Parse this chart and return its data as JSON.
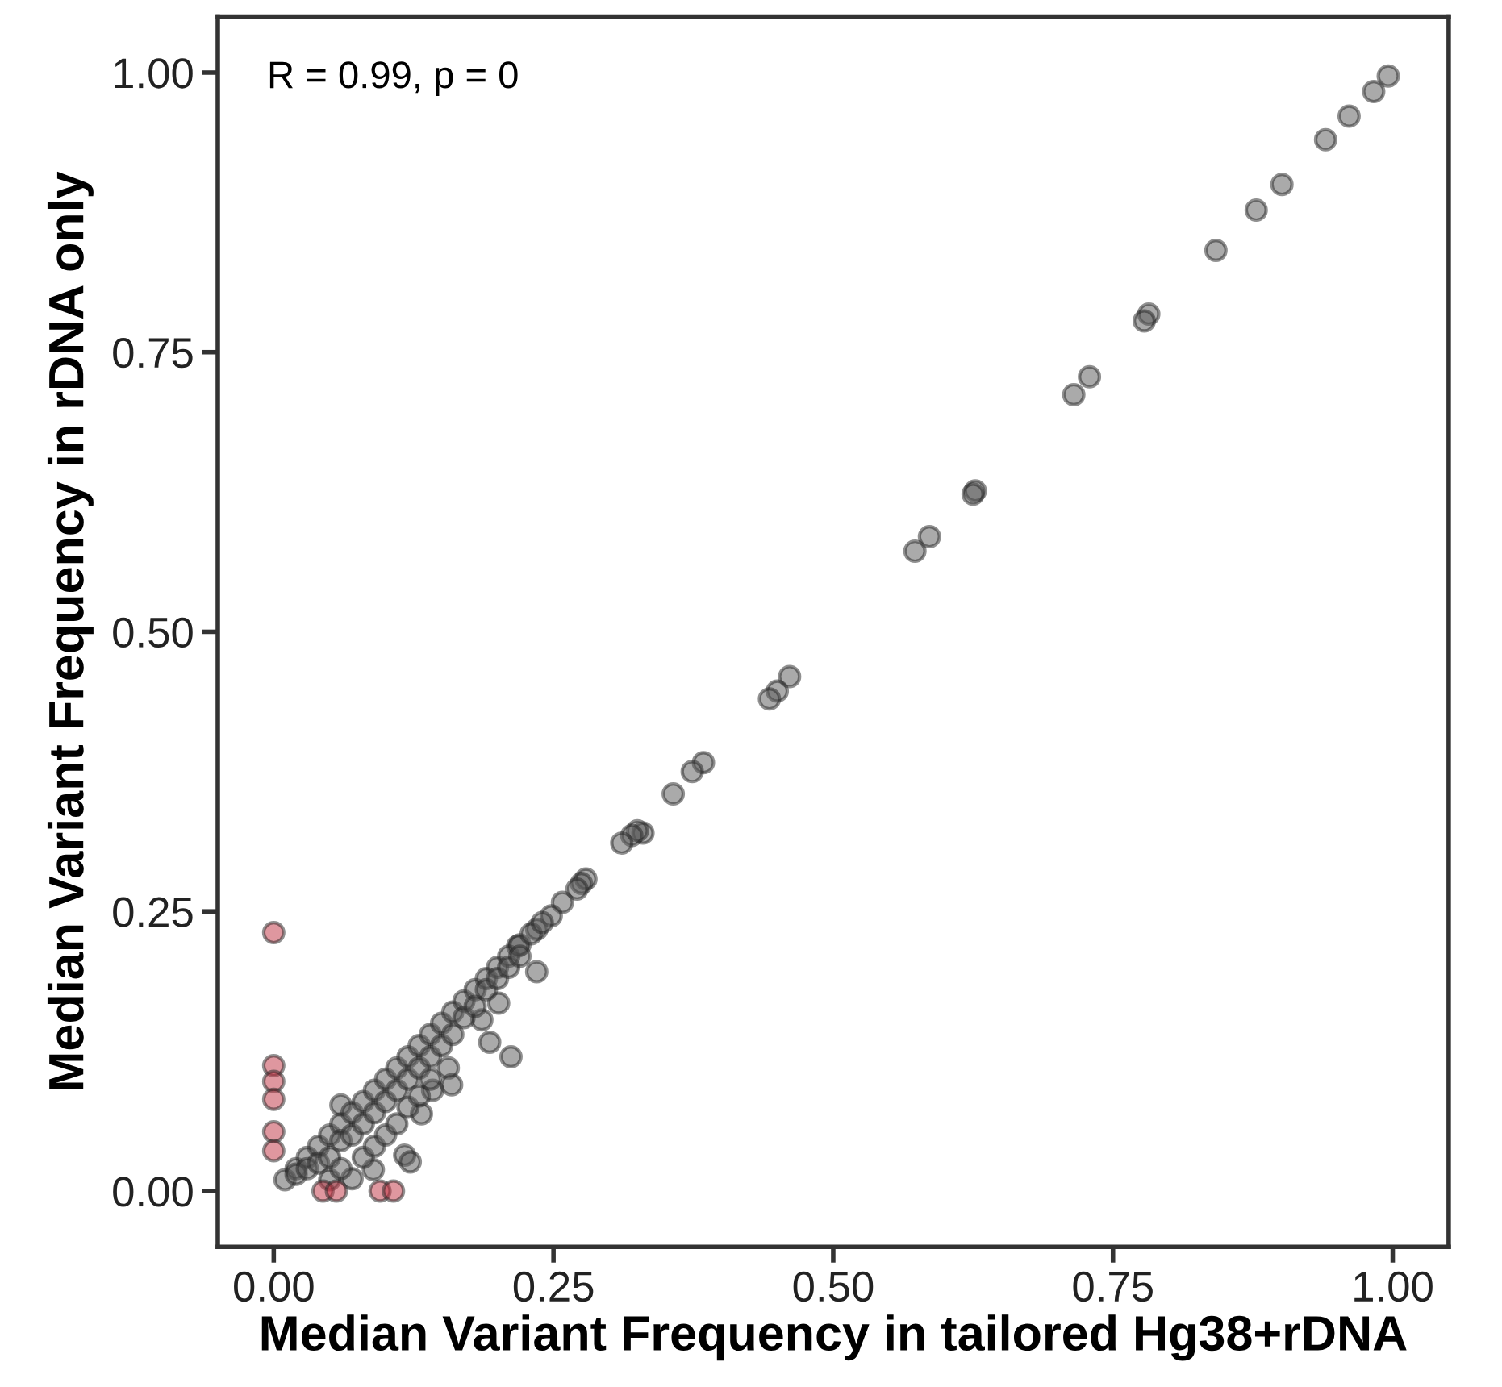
{
  "chart_data": {
    "type": "scatter",
    "xlabel": "Median Variant Frequency in tailored Hg38+rDNA",
    "ylabel": "Median Variant Frequency in rDNA only",
    "annotations": [
      "R = 0.99, p = 0"
    ],
    "xlim": [
      -0.05,
      1.05
    ],
    "ylim": [
      -0.05,
      1.05
    ],
    "xticks": [
      {
        "value": 0,
        "label": "0.00"
      },
      {
        "value": 0.25,
        "label": "0.25"
      },
      {
        "value": 0.5,
        "label": "0.50"
      },
      {
        "value": 0.75,
        "label": "0.75"
      },
      {
        "value": 1,
        "label": "1.00"
      }
    ],
    "yticks": [
      {
        "value": 0,
        "label": "0.00"
      },
      {
        "value": 0.25,
        "label": "0.25"
      },
      {
        "value": 0.5,
        "label": "0.50"
      },
      {
        "value": 0.75,
        "label": "0.75"
      },
      {
        "value": 1,
        "label": "1.00"
      }
    ],
    "grid": false,
    "legend": false,
    "marker": "circle",
    "series": [
      {
        "color": "#555555",
        "x": [
          0.996,
          0.983,
          0.961,
          0.94,
          0.901,
          0.878,
          0.842,
          0.782,
          0.778,
          0.729,
          0.715,
          0.627,
          0.625,
          0.586,
          0.573,
          0.461,
          0.45,
          0.443,
          0.384,
          0.374,
          0.357,
          0.33,
          0.325,
          0.32,
          0.311,
          0.279,
          0.275,
          0.271,
          0.258,
          0.248,
          0.235,
          0.235,
          0.218,
          0.201,
          0.186,
          0.193,
          0.212,
          0.156,
          0.159,
          0.142,
          0.132,
          0.06,
          0.117,
          0.122,
          0.089,
          0.07,
          0.01,
          0.02,
          0.03,
          0.04,
          0.05,
          0.06,
          0.07,
          0.08,
          0.09,
          0.1,
          0.11,
          0.12,
          0.13,
          0.14,
          0.15,
          0.16,
          0.17,
          0.18,
          0.19,
          0.2,
          0.21,
          0.22,
          0.23,
          0.24,
          0.02,
          0.03,
          0.04,
          0.05,
          0.06,
          0.07,
          0.08,
          0.09,
          0.1,
          0.11,
          0.12,
          0.13,
          0.14,
          0.15,
          0.16,
          0.17,
          0.18,
          0.19,
          0.2,
          0.21,
          0.22,
          0.05,
          0.06,
          0.08,
          0.09,
          0.1,
          0.11,
          0.12,
          0.13,
          0.14
        ],
        "values": [
          0.997,
          0.983,
          0.961,
          0.94,
          0.9,
          0.877,
          0.841,
          0.784,
          0.778,
          0.728,
          0.712,
          0.626,
          0.623,
          0.585,
          0.572,
          0.46,
          0.447,
          0.44,
          0.383,
          0.375,
          0.355,
          0.32,
          0.322,
          0.318,
          0.311,
          0.279,
          0.275,
          0.27,
          0.258,
          0.246,
          0.234,
          0.196,
          0.219,
          0.168,
          0.153,
          0.133,
          0.12,
          0.11,
          0.095,
          0.09,
          0.069,
          0.077,
          0.032,
          0.026,
          0.019,
          0.011,
          0.01,
          0.02,
          0.03,
          0.04,
          0.05,
          0.06,
          0.07,
          0.08,
          0.09,
          0.1,
          0.11,
          0.12,
          0.13,
          0.14,
          0.15,
          0.16,
          0.17,
          0.18,
          0.19,
          0.2,
          0.21,
          0.22,
          0.23,
          0.24,
          0.015,
          0.02,
          0.025,
          0.03,
          0.045,
          0.05,
          0.06,
          0.07,
          0.08,
          0.09,
          0.1,
          0.11,
          0.12,
          0.13,
          0.14,
          0.155,
          0.165,
          0.18,
          0.19,
          0.2,
          0.21,
          0.01,
          0.02,
          0.03,
          0.04,
          0.05,
          0.06,
          0.075,
          0.085,
          0.1
        ]
      },
      {
        "color": "#c0303f",
        "x": [
          0,
          0,
          0,
          0,
          0,
          0,
          0.044,
          0.056,
          0.095,
          0.107
        ],
        "values": [
          0.231,
          0.112,
          0.098,
          0.082,
          0.053,
          0.036,
          0,
          0,
          0,
          0
        ]
      }
    ]
  }
}
